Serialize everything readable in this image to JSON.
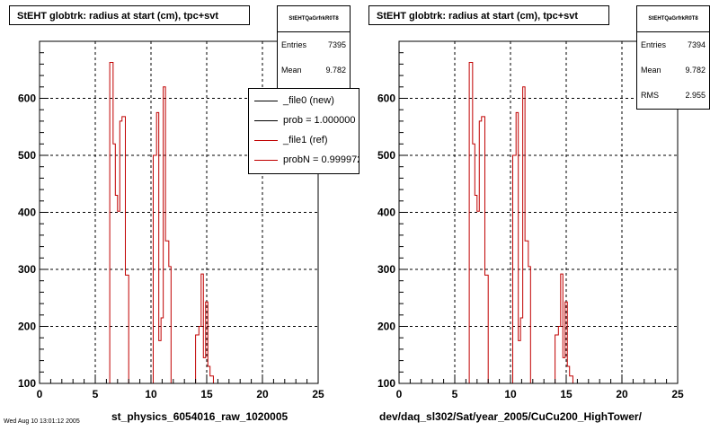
{
  "chart_data": [
    {
      "type": "bar",
      "title": "StEHT globtrk: radius at start (cm), tpc+svt",
      "xlabel": "st_physics_6054016_raw_1020005",
      "ylabel": "",
      "xlim": [
        0,
        25
      ],
      "ylim": [
        100,
        700
      ],
      "xticks": [
        0,
        5,
        10,
        15,
        20,
        25
      ],
      "yticks": [
        100,
        200,
        300,
        400,
        500,
        600
      ],
      "grid": true,
      "line_color": "#c00000",
      "stats": {
        "name": "StEHTQaGrfrkR0T8",
        "entries_label": "Entries",
        "entries": "7395",
        "mean_label": "Mean",
        "mean": "9.782"
      },
      "legend": [
        {
          "label": "_file0 (new)",
          "color": "#000000"
        },
        {
          "label": "prob = 1.000000",
          "color": "#000000"
        },
        {
          "label": "_file1 (ref)",
          "color": "#c00000"
        },
        {
          "label": "probN = 0.999972",
          "color": "#c00000"
        }
      ],
      "bins": [
        [
          0.0,
          6.3,
          100
        ],
        [
          6.3,
          6.6,
          663
        ],
        [
          6.6,
          6.8,
          520
        ],
        [
          6.8,
          7.0,
          430
        ],
        [
          7.0,
          7.2,
          402
        ],
        [
          7.2,
          7.4,
          560
        ],
        [
          7.4,
          7.7,
          568
        ],
        [
          7.7,
          8.0,
          290
        ],
        [
          8.0,
          10.2,
          100
        ],
        [
          10.2,
          10.5,
          500
        ],
        [
          10.5,
          10.7,
          575
        ],
        [
          10.7,
          10.9,
          175
        ],
        [
          10.9,
          11.1,
          215
        ],
        [
          11.1,
          11.3,
          620
        ],
        [
          11.3,
          11.6,
          350
        ],
        [
          11.6,
          11.8,
          305
        ],
        [
          11.8,
          14.0,
          100
        ],
        [
          14.0,
          14.3,
          185
        ],
        [
          14.3,
          14.5,
          200
        ],
        [
          14.5,
          14.7,
          292
        ],
        [
          14.7,
          14.9,
          145
        ],
        [
          14.9,
          15.1,
          243
        ],
        [
          15.1,
          15.3,
          130
        ],
        [
          15.3,
          15.6,
          113
        ],
        [
          15.6,
          25.0,
          100
        ]
      ]
    },
    {
      "type": "bar",
      "title": "StEHT globtrk: radius at start (cm), tpc+svt",
      "xlabel": "dev/daq_sl302/Sat/year_2005/CuCu200_HighTower/",
      "ylabel": "",
      "xlim": [
        0,
        25
      ],
      "ylim": [
        100,
        700
      ],
      "xticks": [
        0,
        5,
        10,
        15,
        20,
        25
      ],
      "yticks": [
        100,
        200,
        300,
        400,
        500,
        600
      ],
      "grid": true,
      "line_color": "#c00000",
      "stats": {
        "name": "StEHTQaGrfrkR0T8",
        "entries_label": "Entries",
        "entries": "7394",
        "mean_label": "Mean",
        "mean": "9.782",
        "rms_label": "RMS",
        "rms": "2.955"
      },
      "bins": [
        [
          0.0,
          6.3,
          100
        ],
        [
          6.3,
          6.6,
          663
        ],
        [
          6.6,
          6.8,
          520
        ],
        [
          6.8,
          7.0,
          430
        ],
        [
          7.0,
          7.2,
          402
        ],
        [
          7.2,
          7.4,
          560
        ],
        [
          7.4,
          7.7,
          568
        ],
        [
          7.7,
          8.0,
          290
        ],
        [
          8.0,
          10.2,
          100
        ],
        [
          10.2,
          10.5,
          500
        ],
        [
          10.5,
          10.7,
          575
        ],
        [
          10.7,
          10.9,
          175
        ],
        [
          10.9,
          11.1,
          215
        ],
        [
          11.1,
          11.3,
          620
        ],
        [
          11.3,
          11.6,
          350
        ],
        [
          11.6,
          11.8,
          305
        ],
        [
          11.8,
          14.0,
          100
        ],
        [
          14.0,
          14.3,
          185
        ],
        [
          14.3,
          14.5,
          200
        ],
        [
          14.5,
          14.7,
          292
        ],
        [
          14.7,
          14.9,
          145
        ],
        [
          14.9,
          15.1,
          243
        ],
        [
          15.1,
          15.3,
          130
        ],
        [
          15.3,
          15.6,
          113
        ],
        [
          15.6,
          25.0,
          100
        ]
      ]
    }
  ],
  "footnote": "Wed Aug 10 13:01:12 2005"
}
